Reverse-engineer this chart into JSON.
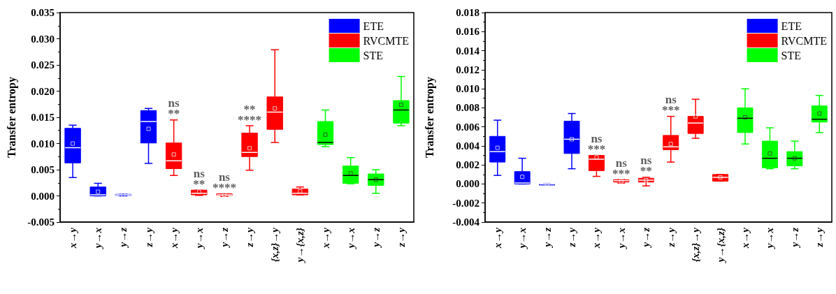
{
  "chart_data": [
    {
      "type": "box",
      "ylabel": "Transfer entropy",
      "categories": [
        "x→y",
        "y→x",
        "y→z",
        "z→y",
        "x→y",
        "y→x",
        "y→z",
        "z→y",
        "{x,z}→y",
        "y→{x,z}",
        "x→y",
        "y→x",
        "y→z",
        "z→y"
      ],
      "ylim": [
        -0.005,
        0.035
      ],
      "yticks": [
        {
          "value": -0.005,
          "label": "-0.005"
        },
        {
          "value": 0,
          "label": "0.000"
        },
        {
          "value": 0.005,
          "label": "0.005"
        },
        {
          "value": 0.01,
          "label": "0.010"
        },
        {
          "value": 0.015,
          "label": "0.015"
        },
        {
          "value": 0.02,
          "label": "0.020"
        },
        {
          "value": 0.025,
          "label": "0.025"
        },
        {
          "value": 0.03,
          "label": "0.030"
        },
        {
          "value": 0.035,
          "label": "0.035"
        }
      ],
      "legend": "top right",
      "grid": false,
      "series": [
        {
          "name": "ETE",
          "color": "#0000ff",
          "boxes": [
            {
              "low": 0.0035,
              "q1": 0.0063,
              "median": 0.0092,
              "q3": 0.0129,
              "high": 0.0135,
              "mean": 0.01
            },
            {
              "low": 0.0,
              "q1": 0.0,
              "median": 0.0002,
              "q3": 0.0017,
              "high": 0.0024,
              "mean": 0.0008
            },
            {
              "low": 0.0,
              "q1": 0.0001,
              "median": 0.0002,
              "q3": 0.0003,
              "high": 0.0003,
              "mean": 0.0002
            },
            {
              "low": 0.0062,
              "q1": 0.0101,
              "median": 0.0142,
              "q3": 0.0163,
              "high": 0.0167,
              "mean": 0.0128
            },
            null,
            null,
            null,
            null,
            null,
            null,
            null,
            null,
            null,
            null
          ]
        },
        {
          "name": "RVCMTE",
          "color": "#ff0000",
          "boxes": [
            null,
            null,
            null,
            null,
            {
              "low": 0.0039,
              "q1": 0.0052,
              "median": 0.0067,
              "q3": 0.0101,
              "high": 0.0145,
              "mean": 0.0079
            },
            {
              "low": 0.0001,
              "q1": 0.0002,
              "median": 0.0005,
              "q3": 0.0011,
              "high": 0.0011,
              "mean": 0.0008
            },
            {
              "low": -0.0001,
              "q1": 0.0001,
              "median": 0.0002,
              "q3": 0.0004,
              "high": 0.0004,
              "mean": 0.0002
            },
            {
              "low": 0.0049,
              "q1": 0.0075,
              "median": 0.0083,
              "q3": 0.012,
              "high": 0.0134,
              "mean": 0.0091
            },
            {
              "low": 0.0102,
              "q1": 0.0127,
              "median": 0.016,
              "q3": 0.0189,
              "high": 0.0279,
              "mean": 0.0167
            },
            {
              "low": 0.0002,
              "q1": 0.0002,
              "median": 0.0005,
              "q3": 0.0013,
              "high": 0.0017,
              "mean": 0.0009
            },
            null,
            null,
            null,
            null
          ]
        },
        {
          "name": "STE",
          "color": "#00ff00",
          "boxes": [
            null,
            null,
            null,
            null,
            null,
            null,
            null,
            null,
            null,
            null,
            {
              "low": 0.0094,
              "q1": 0.0098,
              "median": 0.0102,
              "q3": 0.0142,
              "high": 0.0164,
              "mean": 0.0117
            },
            {
              "low": 0.0023,
              "q1": 0.0024,
              "median": 0.0039,
              "q3": 0.0057,
              "high": 0.0073,
              "mean": 0.0043
            },
            {
              "low": 0.0005,
              "q1": 0.002,
              "median": 0.0031,
              "q3": 0.0042,
              "high": 0.005,
              "mean": 0.0031
            },
            {
              "low": 0.0134,
              "q1": 0.0139,
              "median": 0.0164,
              "q3": 0.0182,
              "high": 0.0228,
              "mean": 0.0174
            }
          ]
        }
      ],
      "annotations": [
        "ns",
        "**",
        "ns",
        "**",
        "ns",
        "****",
        "**",
        "****"
      ]
    },
    {
      "type": "box",
      "ylabel": "Transfer entropy",
      "categories": [
        "x→y",
        "y→x",
        "y→z",
        "z→y",
        "x→y",
        "y→x",
        "y→z",
        "z→y",
        "{x,z}→y",
        "y→{x,z}",
        "x→y",
        "y→x",
        "y→z",
        "z→y"
      ],
      "ylim": [
        -0.004,
        0.018
      ],
      "yticks": [
        {
          "value": -0.004,
          "label": "-0.004"
        },
        {
          "value": -0.002,
          "label": "-0.002"
        },
        {
          "value": 0,
          "label": "0.000"
        },
        {
          "value": 0.002,
          "label": "0.002"
        },
        {
          "value": 0.004,
          "label": "0.004"
        },
        {
          "value": 0.006,
          "label": "0.006"
        },
        {
          "value": 0.008,
          "label": "0.008"
        },
        {
          "value": 0.01,
          "label": "0.010"
        },
        {
          "value": 0.012,
          "label": "0.012"
        },
        {
          "value": 0.014,
          "label": "0.014"
        },
        {
          "value": 0.016,
          "label": "0.016"
        },
        {
          "value": 0.018,
          "label": "0.018"
        }
      ],
      "legend": "top right",
      "grid": false,
      "series": [
        {
          "name": "ETE",
          "color": "#0000ff",
          "boxes": [
            {
              "low": 0.0009,
              "q1": 0.0023,
              "median": 0.0034,
              "q3": 0.005,
              "high": 0.0067,
              "mean": 0.0038
            },
            {
              "low": 0.0,
              "q1": 0.0,
              "median": 0.0001,
              "q3": 0.0013,
              "high": 0.0027,
              "mean": 0.00075
            },
            {
              "low": 0.0,
              "q1": 0.0,
              "median": 0.0,
              "q3": 0.0,
              "high": 0.0,
              "mean": 0.0
            },
            {
              "low": 0.0016,
              "q1": 0.0032,
              "median": 0.0047,
              "q3": 0.0066,
              "high": 0.0074,
              "mean": 0.0047
            },
            null,
            null,
            null,
            null,
            null,
            null,
            null,
            null,
            null,
            null
          ]
        },
        {
          "name": "RVCMTE",
          "color": "#ff0000",
          "boxes": [
            null,
            null,
            null,
            null,
            {
              "low": 0.0008,
              "q1": 0.0014,
              "median": 0.0026,
              "q3": 0.003,
              "high": 0.003,
              "mean": 0.0028
            },
            {
              "low": 0.0001,
              "q1": 0.0002,
              "median": 0.00035,
              "q3": 0.00045,
              "high": 0.00045,
              "mean": 0.0003
            },
            {
              "low": -0.0002,
              "q1": 0.0002,
              "median": 0.0004,
              "q3": 0.0006,
              "high": 0.0007,
              "mean": 0.0004
            },
            {
              "low": 0.0023,
              "q1": 0.0036,
              "median": 0.0039,
              "q3": 0.0051,
              "high": 0.0071,
              "mean": 0.0042
            },
            {
              "low": 0.0048,
              "q1": 0.0053,
              "median": 0.0064,
              "q3": 0.0071,
              "high": 0.0089,
              "mean": 0.0071
            },
            {
              "low": 0.0003,
              "q1": 0.0003,
              "median": 0.0007,
              "q3": 0.001,
              "high": 0.001,
              "mean": 0.0007
            },
            null,
            null,
            null,
            null
          ]
        },
        {
          "name": "STE",
          "color": "#00ff00",
          "boxes": [
            null,
            null,
            null,
            null,
            null,
            null,
            null,
            null,
            null,
            null,
            {
              "low": 0.0042,
              "q1": 0.0054,
              "median": 0.0069,
              "q3": 0.008,
              "high": 0.01,
              "mean": 0.007
            },
            {
              "low": 0.0016,
              "q1": 0.0017,
              "median": 0.0027,
              "q3": 0.0045,
              "high": 0.0059,
              "mean": 0.0032
            },
            {
              "low": 0.0016,
              "q1": 0.0019,
              "median": 0.0027,
              "q3": 0.0034,
              "high": 0.0045,
              "mean": 0.0027
            },
            {
              "low": 0.0054,
              "q1": 0.0065,
              "median": 0.0068,
              "q3": 0.0082,
              "high": 0.0093,
              "mean": 0.0074
            }
          ]
        }
      ],
      "annotations": [
        "ns",
        "***",
        "ns",
        "***",
        "ns",
        "**",
        "ns",
        "***"
      ]
    }
  ]
}
